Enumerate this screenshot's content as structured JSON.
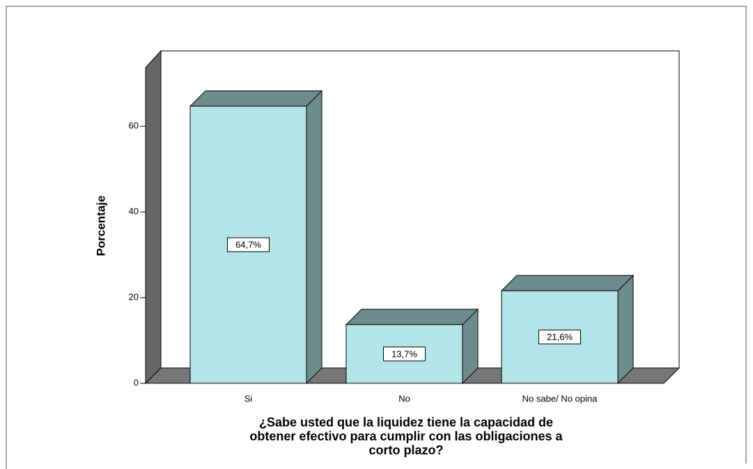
{
  "chart_data": {
    "type": "bar3d",
    "categories": [
      "Si",
      "No",
      "No sabe/ No opina"
    ],
    "values": [
      64.7,
      13.7,
      21.6
    ],
    "value_labels": [
      "64,7%",
      "13,7%",
      "21,6%"
    ],
    "color": "#b3e5e8",
    "side_color": "#6e8c8c",
    "ylabel": "Porcentaje",
    "xlabel": [
      "¿Sabe usted que  la liquidez  tiene  la capacidad de",
      "obtener  efectivo para cumplir con las obligaciones a",
      "corto plazo?"
    ],
    "ylim": [
      0,
      73.7
    ],
    "yticks": [
      0,
      20,
      40,
      60
    ]
  }
}
